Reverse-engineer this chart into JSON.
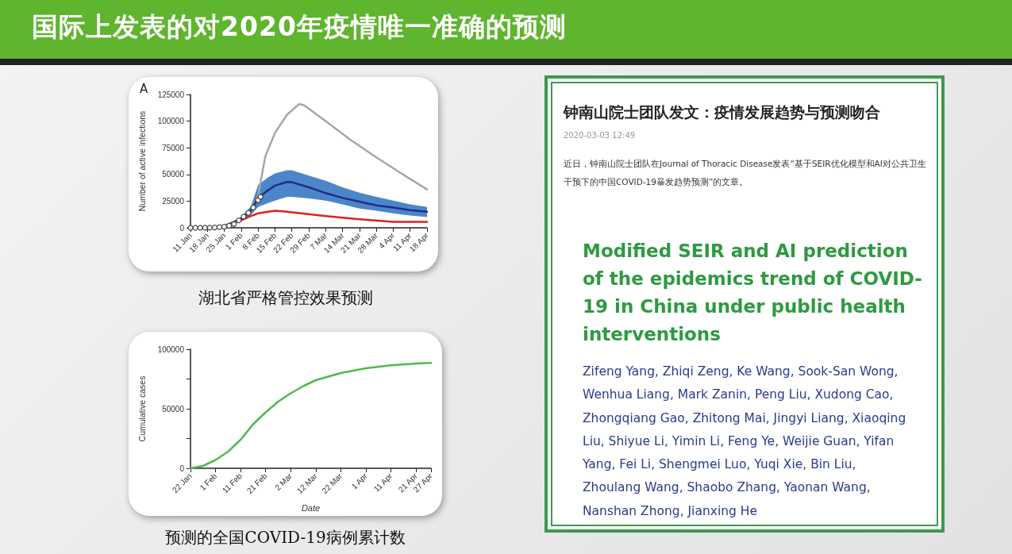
{
  "chart_data": [
    {
      "type": "other",
      "title": "国际上发表的对2020年疫情唯一准确的预测"
    },
    {
      "type": "line",
      "ylabel": "Number of active infections",
      "annotations": [
        "A",
        "湖北省严格管控效果预测"
      ],
      "xlim": [
        "2020-01-11",
        "2020-04-18"
      ],
      "ylim": [
        0,
        125000
      ],
      "yticks": [
        0,
        25000,
        50000,
        75000,
        100000,
        125000
      ],
      "xticks": [
        {
          "value": "2020-01-11",
          "label": "11 Jan"
        },
        {
          "value": "2020-01-18",
          "label": "18 Jan"
        },
        {
          "value": "2020-01-25",
          "label": "25 Jan"
        },
        {
          "value": "2020-02-01",
          "label": "1 Feb"
        },
        {
          "value": "2020-02-08",
          "label": "8 Feb"
        },
        {
          "value": "2020-02-15",
          "label": "15 Feb"
        },
        {
          "value": "2020-02-22",
          "label": "22 Feb"
        },
        {
          "value": "2020-02-29",
          "label": "29 Feb"
        },
        {
          "value": "2020-03-07",
          "label": "7 Mar"
        },
        {
          "value": "2020-03-14",
          "label": "14 Mar"
        },
        {
          "value": "2020-03-21",
          "label": "21 Mar"
        },
        {
          "value": "2020-03-28",
          "label": "28 Mar"
        },
        {
          "value": "2020-04-04",
          "label": "4 Apr"
        },
        {
          "value": "2020-04-11",
          "label": "11 Apr"
        },
        {
          "value": "2020-04-18",
          "label": "18 Apr"
        }
      ],
      "series": [
        {
          "type": "line",
          "marker": "none",
          "color": "#a6a6a6",
          "x": [
            "2020-01-25",
            "2020-02-01",
            "2020-02-05",
            "2020-02-08",
            "2020-02-11",
            "2020-02-15",
            "2020-02-20",
            "2020-02-25",
            "2020-02-27",
            "2020-03-07",
            "2020-03-17",
            "2020-03-28",
            "2020-04-08",
            "2020-04-18"
          ],
          "values": [
            1500,
            8500,
            16000,
            30000,
            67000,
            89000,
            106000,
            116000,
            115000,
            100000,
            83000,
            66000,
            50000,
            36000
          ]
        },
        {
          "type": "line",
          "marker": "none",
          "color": "#1f2d8a",
          "x": [
            "2020-01-25",
            "2020-02-01",
            "2020-02-05",
            "2020-02-08",
            "2020-02-12",
            "2020-02-15",
            "2020-02-20",
            "2020-02-22",
            "2020-02-29",
            "2020-03-07",
            "2020-03-14",
            "2020-03-21",
            "2020-03-28",
            "2020-04-04",
            "2020-04-11",
            "2020-04-18"
          ],
          "values": [
            1500,
            8500,
            16000,
            28000,
            35000,
            39500,
            43000,
            42700,
            38000,
            32500,
            28000,
            24500,
            21000,
            19000,
            16500,
            15000
          ],
          "lower": [
            1500,
            7000,
            12000,
            19500,
            23000,
            25500,
            29000,
            29000,
            27500,
            25500,
            22000,
            18000,
            16000,
            13500,
            11500,
            10000
          ],
          "upper": [
            1500,
            10000,
            20000,
            40000,
            47000,
            51000,
            54000,
            54000,
            49000,
            44000,
            38000,
            33000,
            29000,
            25500,
            22000,
            19500
          ]
        },
        {
          "type": "line",
          "marker": "none",
          "color": "#e02020",
          "x": [
            "2020-01-25",
            "2020-02-01",
            "2020-02-05",
            "2020-02-08",
            "2020-02-15",
            "2020-02-20",
            "2020-03-07",
            "2020-03-21",
            "2020-04-04",
            "2020-04-18"
          ],
          "values": [
            1500,
            7000,
            11000,
            13500,
            16000,
            15000,
            11000,
            8000,
            5500,
            5500
          ]
        },
        {
          "type": "scatter",
          "marker": "circle",
          "color": "#ffffff",
          "x": [
            "2020-01-11",
            "2020-01-13",
            "2020-01-15",
            "2020-01-17",
            "2020-01-19",
            "2020-01-21",
            "2020-01-23",
            "2020-01-25",
            "2020-01-27",
            "2020-01-29",
            "2020-01-31",
            "2020-02-02",
            "2020-02-04",
            "2020-02-06",
            "2020-02-08",
            "2020-02-09"
          ],
          "values": [
            0,
            0,
            0,
            0,
            100,
            300,
            600,
            1000,
            2000,
            3500,
            7000,
            10500,
            14000,
            19000,
            26000,
            29000
          ]
        }
      ]
    },
    {
      "type": "line",
      "xlabel": "Date",
      "ylabel": "Cumulative cases",
      "annotations": [
        "预测的全国COVID-19病例累计数"
      ],
      "xlim": [
        "2020-01-22",
        "2020-04-27"
      ],
      "ylim": [
        0,
        100000
      ],
      "yticks": [
        0,
        {
          "value": 25000,
          "label": null
        },
        50000,
        {
          "value": 75000,
          "label": null
        },
        100000
      ],
      "xticks": [
        {
          "value": "2020-01-22",
          "label": "22 Jan"
        },
        {
          "value": "2020-02-01",
          "label": "1 Feb"
        },
        {
          "value": "2020-02-11",
          "label": "11 Feb"
        },
        {
          "value": "2020-02-21",
          "label": "21 Feb"
        },
        {
          "value": "2020-03-02",
          "label": "2 Mar"
        },
        {
          "value": "2020-03-12",
          "label": "12 Mar"
        },
        {
          "value": "2020-03-22",
          "label": "22 Mar"
        },
        {
          "value": "2020-04-01",
          "label": "1 Apr"
        },
        {
          "value": "2020-04-11",
          "label": "11 Apr"
        },
        {
          "value": "2020-04-21",
          "label": "21 Apr"
        },
        {
          "value": "2020-04-27",
          "label": "27 Apr"
        }
      ],
      "series": [
        {
          "type": "line",
          "marker": "none",
          "color": "#4cbb4c",
          "x": [
            "2020-01-22",
            "2020-01-27",
            "2020-02-01",
            "2020-02-06",
            "2020-02-11",
            "2020-02-16",
            "2020-02-21",
            "2020-02-26",
            "2020-03-02",
            "2020-03-07",
            "2020-03-12",
            "2020-03-22",
            "2020-04-01",
            "2020-04-11",
            "2020-04-21",
            "2020-04-27"
          ],
          "values": [
            0,
            2000,
            7000,
            14000,
            24000,
            37000,
            47000,
            56000,
            63000,
            69000,
            74000,
            80000,
            84000,
            86500,
            88000,
            88500
          ]
        }
      ]
    },
    {
      "type": "other",
      "title": "钟南山院士团队发文：疫情发展趋势与预测吻合",
      "subtitle": "2020-03-03 12:49",
      "annotations": [
        "近日，钟南山院士团队在Journal of Thoracic Disease发表“基于SEIR优化模型和AI对公共卫生干预下的中国COVID-19暴发趋势预测”的文章。",
        "Modified SEIR and AI prediction of the epidemics trend of COVID-19 in China under public health interventions",
        "Zifeng Yang, Zhiqi Zeng, Ke Wang, Sook-San Wong, Wenhua Liang, Mark Zanin, Peng Liu, Xudong Cao, Zhongqiang Gao, Zhitong Mai, Jingyi Liang, Xiaoqing Liu, Shiyue Li, Yimin Li, Feng Ye, Weijie Guan, Yifan Yang, Fei Li, Shengmei Luo, Yuqi Xie, Bin Liu, Zhoulang Wang, Shaobo Zhang, Yaonan Wang, Nanshan Zhong, Jianxing He"
      ]
    }
  ]
}
